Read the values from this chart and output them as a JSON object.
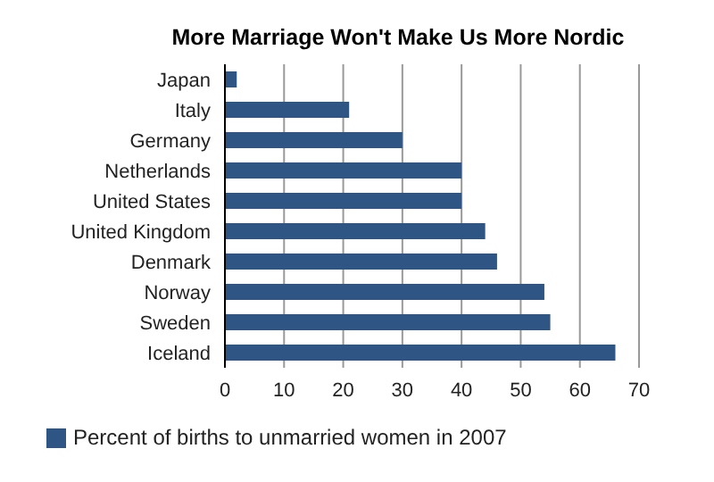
{
  "chart_data": {
    "type": "bar",
    "orientation": "horizontal",
    "title": "More Marriage Won't Make Us More Nordic",
    "categories": [
      "Japan",
      "Italy",
      "Germany",
      "Netherlands",
      "United States",
      "United Kingdom",
      "Denmark",
      "Norway",
      "Sweden",
      "Iceland"
    ],
    "series": [
      {
        "name": "Percent of births to unmarried women in 2007",
        "color": "#2e5583",
        "values": [
          2,
          21,
          30,
          40,
          40,
          44,
          46,
          54,
          55,
          66
        ]
      }
    ],
    "xlim": [
      0,
      70
    ],
    "xticks": [
      0,
      10,
      20,
      30,
      40,
      50,
      60,
      70
    ],
    "grid": "x",
    "legend": "bottom left"
  }
}
